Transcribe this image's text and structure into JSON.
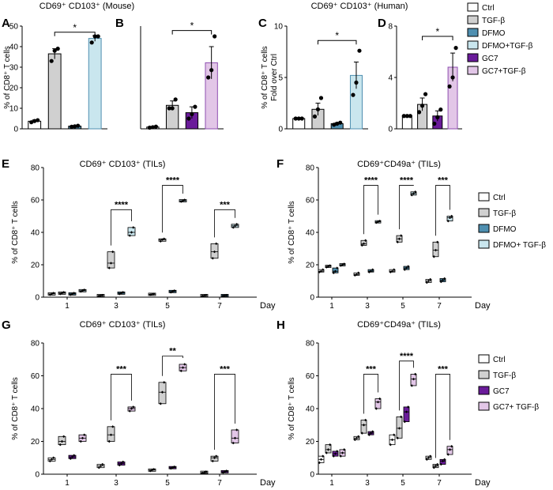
{
  "colors": {
    "ctrl": "#ffffff",
    "tgf": "#d0d0d0",
    "dfmo": "#4f8fb0",
    "dfmo_tgf": "#c9e6ee",
    "gc7": "#6a1b9a",
    "gc7_tgf": "#e2c6e7",
    "dfmo_tgf_bar_edge": "#4f8fb0",
    "gc7_tgf_bar_edge": "#8e4fb0"
  },
  "titles": {
    "mouse": "CD69⁺ CD103⁺ (Mouse)",
    "human": "CD69⁺ CD103⁺ (Human)",
    "E": "CD69⁺ CD103⁺ (TILs)",
    "F": "CD69⁺CD49a⁺ (TILs)",
    "G": "CD69⁺ CD103⁺ (TILs)",
    "H": "CD69⁺CD49a⁺ (TILs)"
  },
  "legend_top": [
    "Ctrl",
    "TGF-β",
    "DFMO",
    "DFMO+TGF-β",
    "GC7",
    "GC7+TGF-β"
  ],
  "legend_dfmo": [
    "Ctrl",
    "TGF-β",
    "DFMO",
    "DFMO+ TGF-β"
  ],
  "legend_gc7": [
    "Ctrl",
    "TGF-β",
    "GC7",
    "GC7+ TGF-β"
  ],
  "day_label": "Day",
  "chart_data": [
    {
      "panel": "A",
      "type": "bar",
      "title": "CD69⁺ CD103⁺ (Mouse)",
      "ylabel": "% of CD8⁺ T cells",
      "ylim": [
        0,
        50
      ],
      "yticks": [
        0,
        10,
        20,
        30,
        40,
        50
      ],
      "categories": [
        "Ctrl",
        "TGF-β",
        "DFMO",
        "DFMO+TGF-β"
      ],
      "values": [
        3.7,
        36.5,
        1.3,
        44.0
      ],
      "errors": [
        0.6,
        2.5,
        0.3,
        1.4
      ],
      "points": [
        [
          3.2,
          3.8,
          4.2
        ],
        [
          33,
          38,
          39
        ],
        [
          1.0,
          1.2,
          1.5
        ],
        [
          42,
          45,
          45
        ]
      ],
      "significance": [
        {
          "from": 1,
          "to": 3,
          "label": "*",
          "y": 47
        }
      ]
    },
    {
      "panel": "B",
      "type": "bar",
      "title": "",
      "ylabel": "",
      "ylim": [
        0,
        70
      ],
      "yticks": [],
      "categories": [
        "Ctrl",
        "TGF-β",
        "GC7",
        "GC7+TGF-β"
      ],
      "values": [
        1.2,
        16,
        11,
        45
      ],
      "errors": [
        0.4,
        3,
        4,
        11
      ],
      "points": [
        [
          0.8,
          1.1,
          1.5
        ],
        [
          14,
          14,
          20
        ],
        [
          7,
          10,
          15
        ],
        [
          35,
          40,
          63
        ]
      ],
      "significance": [
        {
          "from": 1,
          "to": 3,
          "label": "*",
          "y": 67
        }
      ]
    },
    {
      "panel": "C",
      "type": "bar",
      "title": "CD69⁺ CD103⁺ (Human)",
      "ylabel": "% of CD8⁺ T cells Fold over Ctrl",
      "ylim": [
        0,
        10
      ],
      "yticks": [
        0,
        5,
        10
      ],
      "categories": [
        "Ctrl",
        "TGF-β",
        "DFMO",
        "DFMO+TGF-β"
      ],
      "values": [
        1.0,
        1.9,
        0.5,
        5.2
      ],
      "errors": [
        0,
        0.6,
        0.1,
        1.3
      ],
      "points": [
        [
          1,
          1,
          1
        ],
        [
          1.2,
          1.9,
          3.0
        ],
        [
          0.4,
          0.5,
          0.6
        ],
        [
          3.3,
          4.5,
          7.6
        ]
      ],
      "significance": [
        {
          "from": 1,
          "to": 3,
          "label": "*",
          "y": 8.6
        }
      ]
    },
    {
      "panel": "D",
      "type": "bar",
      "title": "",
      "ylabel": "",
      "ylim": [
        0,
        8
      ],
      "yticks": [
        0,
        4,
        8
      ],
      "categories": [
        "Ctrl",
        "TGF-β",
        "GC7",
        "GC7+TGF-β"
      ],
      "values": [
        1.0,
        1.9,
        1.0,
        4.8
      ],
      "errors": [
        0,
        0.5,
        0.4,
        1.1
      ],
      "points": [
        [
          1,
          1,
          1
        ],
        [
          1.3,
          1.8,
          2.7
        ],
        [
          0.4,
          0.9,
          1.5
        ],
        [
          3.3,
          4.0,
          6.3
        ]
      ],
      "significance": [
        {
          "from": 1,
          "to": 3,
          "label": "*",
          "y": 7.2
        }
      ]
    },
    {
      "panel": "E",
      "type": "box",
      "title": "CD69⁺ CD103⁺ (TILs)",
      "ylabel": "% of CD8⁺ T cells",
      "xlabel": "Day",
      "ylim": [
        0,
        80
      ],
      "yticks": [
        0,
        20,
        40,
        60,
        80
      ],
      "categories": [
        "1",
        "3",
        "5",
        "7"
      ],
      "series": [
        {
          "name": "Ctrl",
          "values": [
            [
              1.5,
              2,
              2.5
            ],
            [
              0.8,
              1,
              1.2
            ],
            [
              1.5,
              1.8,
              2
            ],
            [
              0.8,
              1,
              1.2
            ]
          ]
        },
        {
          "name": "TGF-β",
          "values": [
            [
              2,
              2.5,
              3
            ],
            [
              18,
              21,
              28
            ],
            [
              34.5,
              35.5,
              36
            ],
            [
              24,
              28,
              33
            ]
          ]
        },
        {
          "name": "DFMO",
          "values": [
            [
              1.5,
              2,
              2.5
            ],
            [
              2,
              2.5,
              3
            ],
            [
              3,
              3.5,
              4
            ],
            [
              0.8,
              1,
              1.2
            ]
          ]
        },
        {
          "name": "DFMO+ TGF-β",
          "values": [
            [
              3.5,
              4,
              4.5
            ],
            [
              38,
              40,
              43
            ],
            [
              59,
              59.5,
              60
            ],
            [
              43,
              44,
              45
            ]
          ]
        }
      ],
      "significance": [
        {
          "day": "3",
          "label": "****",
          "y": 54
        },
        {
          "day": "5",
          "label": "****",
          "y": 69
        },
        {
          "day": "7",
          "label": "***",
          "y": 54
        }
      ]
    },
    {
      "panel": "F",
      "type": "box",
      "title": "CD69⁺CD49a⁺ (TILs)",
      "ylabel": "% of CD8⁺ T cells",
      "xlabel": "Day",
      "ylim": [
        0,
        80
      ],
      "yticks": [
        0,
        20,
        40,
        60,
        80
      ],
      "categories": [
        "1",
        "3",
        "5",
        "7"
      ],
      "series": [
        {
          "name": "Ctrl",
          "values": [
            [
              15.5,
              16,
              17
            ],
            [
              13.5,
              14,
              15
            ],
            [
              15.5,
              16,
              17
            ],
            [
              9,
              10,
              11
            ]
          ]
        },
        {
          "name": "TGF-β",
          "values": [
            [
              18.5,
              19,
              19.5
            ],
            [
              32,
              33,
              35
            ],
            [
              34,
              36,
              38
            ],
            [
              25,
              29,
              34
            ]
          ]
        },
        {
          "name": "DFMO",
          "values": [
            [
              15,
              16,
              18
            ],
            [
              15.5,
              16,
              17
            ],
            [
              17,
              18,
              19
            ],
            [
              9.5,
              10.5,
              11.5
            ]
          ]
        },
        {
          "name": "DFMO+ TGF-β",
          "values": [
            [
              19.5,
              20,
              20.5
            ],
            [
              46,
              46.5,
              47
            ],
            [
              63,
              64,
              65
            ],
            [
              47,
              49,
              50
            ]
          ]
        }
      ],
      "significance": [
        {
          "day": "3",
          "label": "****",
          "y": 69
        },
        {
          "day": "5",
          "label": "****",
          "y": 69
        },
        {
          "day": "7",
          "label": "***",
          "y": 69
        }
      ]
    },
    {
      "panel": "G",
      "type": "box",
      "title": "CD69⁺ CD103⁺ (TILs)",
      "ylabel": "% of CD8⁺ T cells",
      "xlabel": "Day",
      "ylim": [
        0,
        80
      ],
      "yticks": [
        0,
        20,
        40,
        60,
        80
      ],
      "categories": [
        "1",
        "3",
        "5",
        "7"
      ],
      "series": [
        {
          "name": "Ctrl",
          "values": [
            [
              8,
              9,
              10
            ],
            [
              4,
              5,
              6
            ],
            [
              2,
              2.5,
              3
            ],
            [
              0.8,
              1,
              1.5
            ]
          ]
        },
        {
          "name": "TGF-β",
          "values": [
            [
              18,
              20,
              23
            ],
            [
              20,
              24,
              29
            ],
            [
              43,
              50,
              56
            ],
            [
              8,
              10,
              11
            ]
          ]
        },
        {
          "name": "GC7",
          "values": [
            [
              9.5,
              10.5,
              11.5
            ],
            [
              5.5,
              6.5,
              7.5
            ],
            [
              3.5,
              4,
              4.5
            ],
            [
              1,
              1.5,
              2
            ]
          ]
        },
        {
          "name": "GC7+ TGF-β",
          "values": [
            [
              20,
              22,
              24
            ],
            [
              38.5,
              40,
              41
            ],
            [
              63,
              65,
              67
            ],
            [
              19,
              22,
              27
            ]
          ]
        }
      ],
      "significance": [
        {
          "day": "3",
          "label": "***",
          "y": 61
        },
        {
          "day": "5",
          "label": "**",
          "y": 72
        },
        {
          "day": "7",
          "label": "***",
          "y": 61
        }
      ]
    },
    {
      "panel": "H",
      "type": "box",
      "title": "CD69⁺CD49a⁺ (TILs)",
      "ylabel": "% of CD8⁺ T cells",
      "xlabel": "Day",
      "ylim": [
        0,
        80
      ],
      "yticks": [
        0,
        20,
        40,
        60,
        80
      ],
      "categories": [
        "1",
        "3",
        "5",
        "7"
      ],
      "series": [
        {
          "name": "Ctrl",
          "values": [
            [
              7,
              9,
              11
            ],
            [
              21,
              22,
              23
            ],
            [
              18,
              21,
              24
            ],
            [
              9,
              10,
              11
            ]
          ]
        },
        {
          "name": "TGF-β",
          "values": [
            [
              13,
              15,
              18
            ],
            [
              25,
              30,
              33
            ],
            [
              22,
              28,
              35
            ],
            [
              4,
              5,
              6
            ]
          ]
        },
        {
          "name": "GC7",
          "values": [
            [
              11,
              12.5,
              14
            ],
            [
              24,
              25,
              26
            ],
            [
              32,
              38,
              41
            ],
            [
              6,
              8,
              9
            ]
          ]
        },
        {
          "name": "GC7+ TGF-β",
          "values": [
            [
              11,
              13,
              15
            ],
            [
              40,
              44,
              46
            ],
            [
              54,
              58,
              61
            ],
            [
              12,
              15,
              17
            ]
          ]
        }
      ],
      "significance": [
        {
          "day": "3",
          "label": "***",
          "y": 61
        },
        {
          "day": "5",
          "label": "****",
          "y": 69
        },
        {
          "day": "7",
          "label": "***",
          "y": 61
        }
      ]
    }
  ]
}
